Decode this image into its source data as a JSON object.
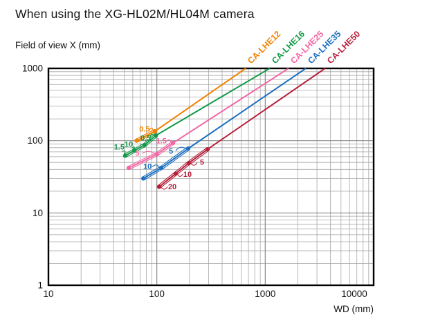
{
  "title": "When using the XG-HL02M/HL04M camera",
  "chart_data": {
    "type": "line",
    "title": "When using the XG-HL02M/HL04M camera",
    "xlabel": "WD (mm)",
    "ylabel": "Field of view X (mm)",
    "x_scale": "log",
    "y_scale": "log",
    "xlim": [
      10,
      10000
    ],
    "ylim": [
      1,
      1000
    ],
    "x_ticks": [
      10,
      100,
      1000,
      10000
    ],
    "y_ticks": [
      1000,
      100,
      10,
      1
    ],
    "grid": {
      "minor": true,
      "major": true
    },
    "legend_position": "rotated -45deg labels above each curve's upper end",
    "series": [
      {
        "name": "CA-LHE12",
        "color": "#ef8200",
        "points": [
          [
            65,
            100
          ],
          [
            96,
            135
          ],
          [
            660,
            1000
          ]
        ],
        "marker_count": 2,
        "ring_labels": [
          {
            "text": "0.5",
            "wd": 77,
            "fov": 144,
            "dot": 1
          }
        ]
      },
      {
        "name": "CA-LHE16",
        "color": "#119a49",
        "points": [
          [
            51,
            62
          ],
          [
            62,
            73
          ],
          [
            77,
            87
          ],
          [
            98,
            118
          ],
          [
            1100,
            1000
          ]
        ],
        "marker_count": 4,
        "ring_labels": [
          {
            "text": "1.5",
            "wd": 45,
            "fov": 81,
            "dot": 0
          },
          {
            "text": "10",
            "wd": 55,
            "fov": 89,
            "dot": 1
          },
          {
            "text": "0.5",
            "wd": 79,
            "fov": 108,
            "dot": 3
          }
        ]
      },
      {
        "name": "CA-LHE25",
        "color": "#f366a3",
        "points": [
          [
            55,
            42
          ],
          [
            100,
            65
          ],
          [
            141,
            93
          ],
          [
            1640,
            1000
          ]
        ],
        "marker_count": 3,
        "ring_labels": [
          {
            "text": "5",
            "wd": 66,
            "fov": 67,
            "dot": 1
          },
          {
            "text": "1.5",
            "wd": 110,
            "fov": 99,
            "dot": 2
          }
        ]
      },
      {
        "name": "CA-LHE35",
        "color": "#1b6fc0",
        "points": [
          [
            75,
            30
          ],
          [
            110,
            42
          ],
          [
            195,
            78
          ],
          [
            2370,
            1000
          ]
        ],
        "marker_count": 3,
        "ring_labels": [
          {
            "text": "10",
            "wd": 82,
            "fov": 44,
            "dot": 1
          },
          {
            "text": "5",
            "wd": 135,
            "fov": 71,
            "dot": 2
          }
        ]
      },
      {
        "name": "CA-LHE50",
        "color": "#b51f39",
        "points": [
          [
            105,
            23
          ],
          [
            149,
            35
          ],
          [
            197,
            49
          ],
          [
            294,
            76
          ],
          [
            3570,
            1000
          ]
        ],
        "marker_count": 4,
        "ring_labels": [
          {
            "text": "20",
            "wd": 139,
            "fov": 23,
            "dot": 0
          },
          {
            "text": "10",
            "wd": 192,
            "fov": 34,
            "dot": 1
          },
          {
            "text": "5",
            "wd": 261,
            "fov": 50,
            "dot": 2
          }
        ]
      }
    ]
  }
}
